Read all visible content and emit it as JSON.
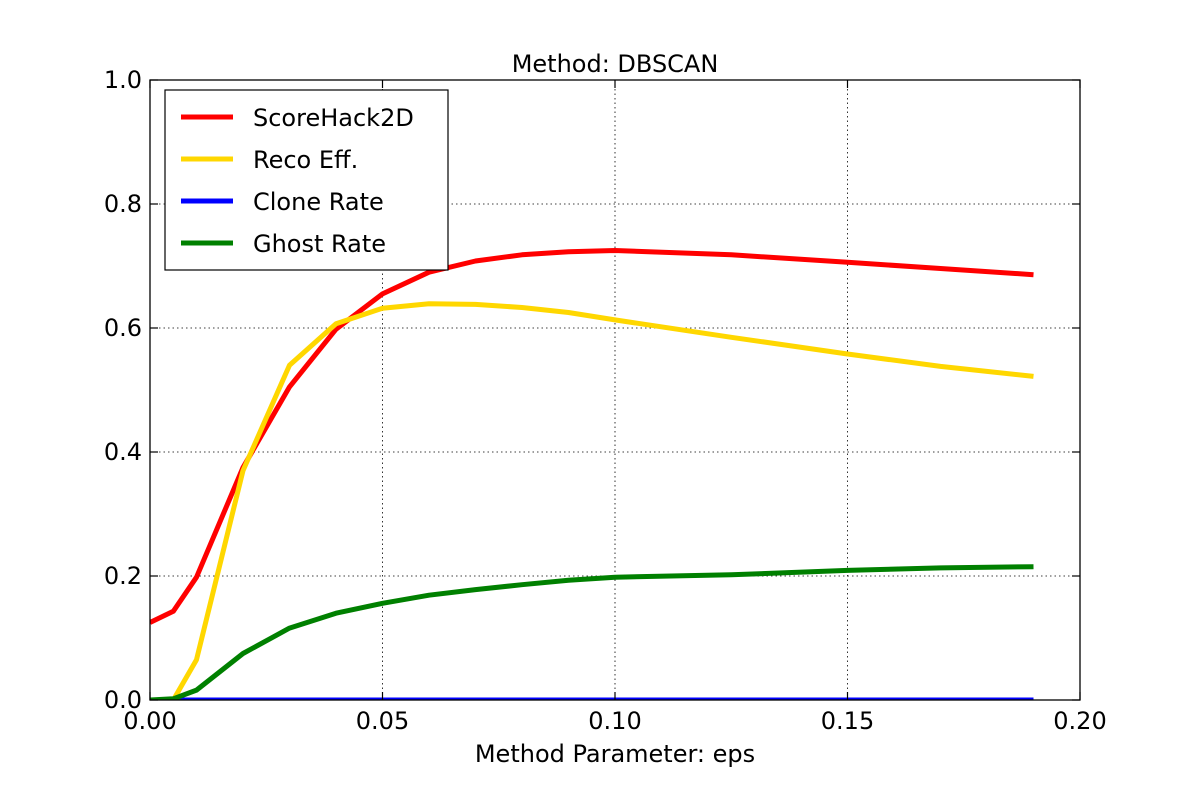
{
  "chart_data": {
    "type": "line",
    "title": "Method: DBSCAN",
    "xlabel": "Method Parameter: eps",
    "ylabel": "",
    "xlim": [
      0.0,
      0.2
    ],
    "ylim": [
      0.0,
      1.0
    ],
    "xticks": [
      "0.00",
      "0.05",
      "0.10",
      "0.15",
      "0.20"
    ],
    "yticks": [
      "0.0",
      "0.2",
      "0.4",
      "0.6",
      "0.8",
      "1.0"
    ],
    "grid": true,
    "legend_position": "top-left",
    "series": [
      {
        "name": "ScoreHack2D",
        "color": "#ff0000",
        "x": [
          0.0,
          0.005,
          0.01,
          0.02,
          0.03,
          0.04,
          0.05,
          0.06,
          0.07,
          0.08,
          0.09,
          0.1,
          0.125,
          0.15,
          0.17,
          0.19
        ],
        "y": [
          0.125,
          0.143,
          0.198,
          0.375,
          0.505,
          0.598,
          0.655,
          0.69,
          0.708,
          0.718,
          0.723,
          0.725,
          0.718,
          0.706,
          0.696,
          0.686
        ]
      },
      {
        "name": "Reco Eff.",
        "color": "#ffd700",
        "x": [
          0.0,
          0.005,
          0.01,
          0.02,
          0.03,
          0.04,
          0.05,
          0.06,
          0.07,
          0.08,
          0.09,
          0.1,
          0.125,
          0.15,
          0.17,
          0.19
        ],
        "y": [
          0.0,
          0.0,
          0.065,
          0.37,
          0.54,
          0.607,
          0.632,
          0.639,
          0.638,
          0.633,
          0.625,
          0.613,
          0.585,
          0.558,
          0.538,
          0.522
        ]
      },
      {
        "name": "Clone Rate",
        "color": "#0000ff",
        "x": [
          0.0,
          0.005,
          0.01,
          0.02,
          0.03,
          0.04,
          0.05,
          0.06,
          0.07,
          0.08,
          0.09,
          0.1,
          0.125,
          0.15,
          0.17,
          0.19
        ],
        "y": [
          0.0,
          0.0,
          0.0,
          0.0,
          0.0,
          0.0,
          0.0,
          0.0,
          0.0,
          0.0,
          0.0,
          0.0,
          0.0,
          0.0,
          0.0,
          0.0
        ]
      },
      {
        "name": "Ghost Rate",
        "color": "#008000",
        "x": [
          0.0,
          0.005,
          0.01,
          0.02,
          0.03,
          0.04,
          0.05,
          0.06,
          0.07,
          0.08,
          0.09,
          0.1,
          0.125,
          0.15,
          0.17,
          0.19
        ],
        "y": [
          0.0,
          0.002,
          0.016,
          0.075,
          0.116,
          0.14,
          0.156,
          0.169,
          0.178,
          0.186,
          0.193,
          0.198,
          0.202,
          0.209,
          0.213,
          0.215
        ]
      }
    ]
  }
}
